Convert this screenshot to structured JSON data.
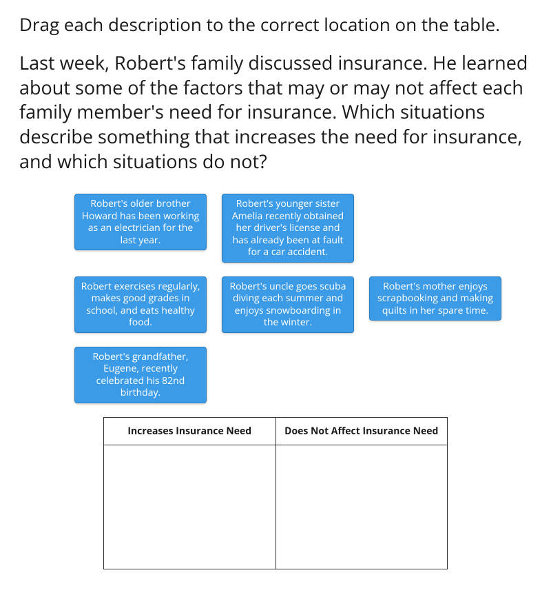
{
  "instruction": "Drag each description to the correct location on the table.",
  "passage": "Last week, Robert's family discussed insurance. He learned about some of the factors that may or may not affect each family member's need for insurance. Which situations describe something that increases the need for insurance, and which situations do not?",
  "tiles": {
    "row1": [
      "Robert's older brother Howard has been working as an electrician for the last year.",
      "Robert's younger sister Amelia recently obtained her driver's license and has already been at fault for a car accident."
    ],
    "row2": [
      "Robert exercises regularly, makes good grades in school, and eats healthy food.",
      "Robert's uncle goes scuba diving each summer and enjoys snowboarding in the winter.",
      "Robert's mother enjoys scrapbooking and making quilts in her spare time."
    ],
    "row3": [
      "Robert's grandfather, Eugene, recently celebrated his 82nd birthday."
    ]
  },
  "table": {
    "headers": [
      "Increases Insurance Need",
      "Does Not Affect Insurance Need"
    ]
  },
  "style": {
    "tile_bg": "#3c9be6",
    "tile_border": "#2a7fc2",
    "tile_text": "#ffffff",
    "tile_fontsize": 14,
    "instruction_fontsize": 26,
    "passage_fontsize": 27,
    "table_border": "#333333",
    "table_header_fontsize": 14,
    "page_bg": "#ffffff",
    "text_color": "#1a1a1a"
  }
}
